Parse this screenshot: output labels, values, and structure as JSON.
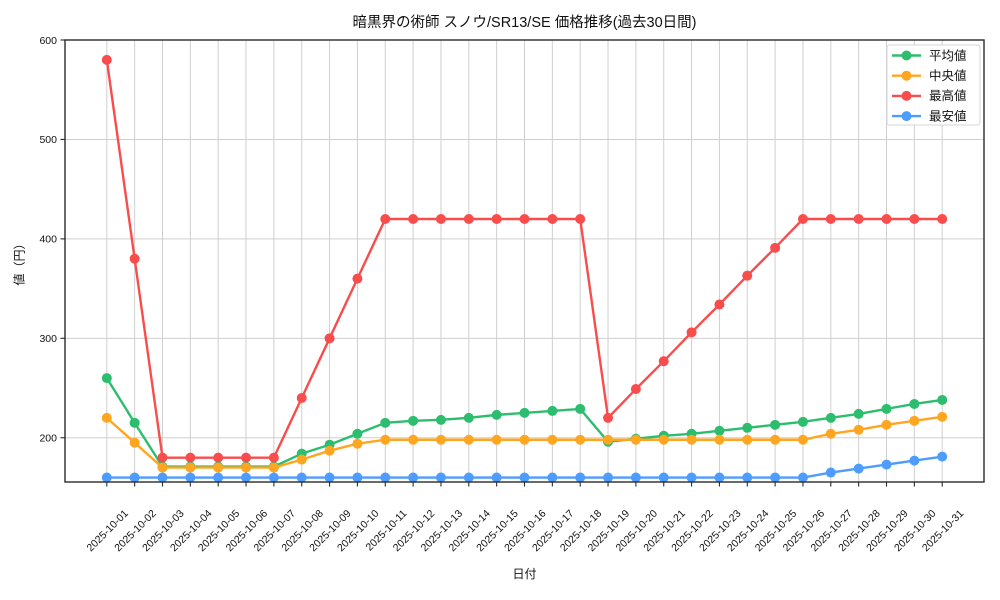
{
  "chart_data": {
    "type": "line",
    "title": "暗黒界の術師 スノウ/SR13/SE 価格推移(過去30日間)",
    "xlabel": "日付",
    "ylabel": "値（円）",
    "x": [
      "2025-10-01",
      "2025-10-02",
      "2025-10-03",
      "2025-10-04",
      "2025-10-05",
      "2025-10-06",
      "2025-10-07",
      "2025-10-08",
      "2025-10-09",
      "2025-10-10",
      "2025-10-11",
      "2025-10-12",
      "2025-10-13",
      "2025-10-14",
      "2025-10-15",
      "2025-10-16",
      "2025-10-17",
      "2025-10-18",
      "2025-10-19",
      "2025-10-20",
      "2025-10-21",
      "2025-10-22",
      "2025-10-23",
      "2025-10-24",
      "2025-10-25",
      "2025-10-26",
      "2025-10-27",
      "2025-10-28",
      "2025-10-29",
      "2025-10-30",
      "2025-10-31"
    ],
    "series": [
      {
        "key": "average",
        "name": "平均値",
        "color": "#2dbd6e",
        "values": [
          260,
          215,
          171,
          171,
          171,
          171,
          171,
          184,
          193,
          204,
          215,
          217,
          218,
          220,
          223,
          225,
          227,
          229,
          196,
          199,
          202,
          204,
          207,
          210,
          213,
          216,
          220,
          224,
          229,
          234,
          238
        ]
      },
      {
        "key": "median",
        "name": "中央値",
        "color": "#ffa620",
        "values": [
          220,
          195,
          170,
          170,
          170,
          170,
          170,
          178,
          187,
          194,
          198,
          198,
          198,
          198,
          198,
          198,
          198,
          198,
          198,
          198,
          198,
          198,
          198,
          198,
          198,
          198,
          204,
          208,
          213,
          217,
          221
        ]
      },
      {
        "key": "max",
        "name": "最高値",
        "color": "#f94d4d",
        "values": [
          580,
          380,
          180,
          180,
          180,
          180,
          180,
          240,
          300,
          360,
          420,
          420,
          420,
          420,
          420,
          420,
          420,
          420,
          220,
          249,
          277,
          306,
          334,
          363,
          391,
          420,
          420,
          420,
          420,
          420,
          420
        ]
      },
      {
        "key": "min",
        "name": "最安値",
        "color": "#4e9cfd",
        "values": [
          160,
          160,
          160,
          160,
          160,
          160,
          160,
          160,
          160,
          160,
          160,
          160,
          160,
          160,
          160,
          160,
          160,
          160,
          160,
          160,
          160,
          160,
          160,
          160,
          160,
          160,
          165,
          169,
          173,
          177,
          181
        ]
      }
    ],
    "yticks": [
      200,
      300,
      400,
      500,
      600
    ],
    "ylim": [
      155.5,
      600
    ],
    "grid": true,
    "legend_position": "upper right",
    "colors": {
      "grid": "#cfcfcf",
      "spine": "#2a2a2a",
      "tick_text": "#111111",
      "legend_border": "#d4d4d4",
      "legend_bg": "#ffffff"
    }
  }
}
